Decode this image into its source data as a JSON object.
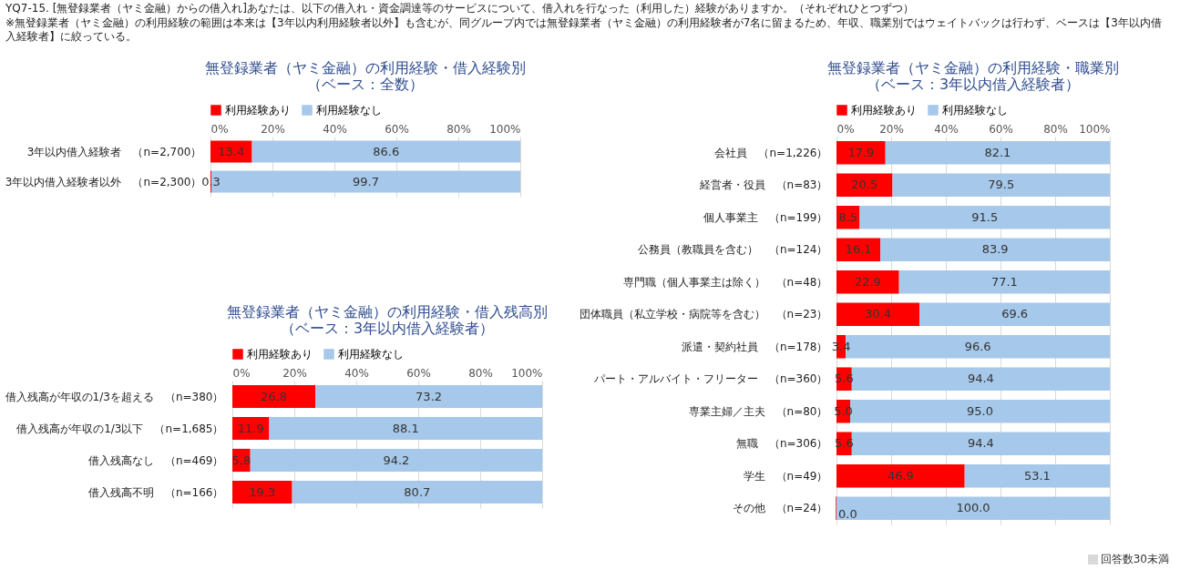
{
  "chart_data": [
    {
      "type": "bar",
      "orientation": "horizontal",
      "stacked": true,
      "title": "無登録業者（ヤミ金融）の利用経験・借入経験別",
      "subtitle": "（ベース：全数）",
      "annotations": [
        "YQ7-15. [無登録業者（ヤミ金融）からの借入れ]あなたは、以下の借入れ・資金調達等のサービスについて、借入れを行なった（利用した）経験がありますか。（それぞれひとつずつ）",
        "※無登録業者（ヤミ金融）の利用経験の範囲は本来は【3年以内利用経験者以外】も含むが、同グループ内では無登録業者（ヤミ金融）の利用経験者が7名に留まるため、年収、職業別ではウェイトバックは行わず、ベースは【3年以内借入経験者】に絞っている。"
      ],
      "categories": [
        "3年以内借入経験者　（n=2,700）",
        "3年以内借入経験者以外　（n=2,300）"
      ],
      "series": [
        {
          "name": "利用経験あり",
          "color": "#ff0000",
          "values": [
            13.4,
            0.3
          ],
          "value_labels": [
            "13.4",
            "0.3"
          ]
        },
        {
          "name": "利用経験なし",
          "color": "#a6c8ea",
          "values": [
            86.6,
            99.7
          ],
          "value_labels": [
            "86.6",
            "99.7"
          ]
        }
      ],
      "xlim": [
        0,
        100
      ],
      "xticks": [
        {
          "value": 0,
          "label": "0%"
        },
        {
          "value": 20,
          "label": "20%"
        },
        {
          "value": 40,
          "label": "40%"
        },
        {
          "value": 60,
          "label": "60%"
        },
        {
          "value": 80,
          "label": "80%"
        },
        {
          "value": 100,
          "label": "100%"
        }
      ],
      "grid": "x",
      "legend": "top"
    },
    {
      "type": "bar",
      "orientation": "horizontal",
      "stacked": true,
      "title": "無登録業者（ヤミ金融）の利用経験・借入残高別",
      "subtitle": "（ベース：3年以内借入経験者）",
      "categories": [
        "借入残高が年収の1/3を超える　（n=380）",
        "借入残高が年収の1/3以下　（n=1,685）",
        "借入残高なし　（n=469）",
        "借入残高不明　（n=166）"
      ],
      "series": [
        {
          "name": "利用経験あり",
          "color": "#ff0000",
          "values": [
            26.8,
            11.9,
            5.8,
            19.3
          ],
          "value_labels": [
            "26.8",
            "11.9",
            "5.8",
            "19.3"
          ]
        },
        {
          "name": "利用経験なし",
          "color": "#a6c8ea",
          "values": [
            73.2,
            88.1,
            94.2,
            80.7
          ],
          "value_labels": [
            "73.2",
            "88.1",
            "94.2",
            "80.7"
          ]
        }
      ],
      "xlim": [
        0,
        100
      ],
      "xticks": [
        {
          "value": 0,
          "label": "0%"
        },
        {
          "value": 20,
          "label": "20%"
        },
        {
          "value": 40,
          "label": "40%"
        },
        {
          "value": 60,
          "label": "60%"
        },
        {
          "value": 80,
          "label": "80%"
        },
        {
          "value": 100,
          "label": "100%"
        }
      ],
      "grid": "x",
      "legend": "top"
    },
    {
      "type": "bar",
      "orientation": "horizontal",
      "stacked": true,
      "title": "無登録業者（ヤミ金融）の利用経験・職業別",
      "subtitle": "（ベース：3年以内借入経験者）",
      "annotations": [
        "回答数30未満"
      ],
      "categories": [
        "会社員　（n=1,226）",
        "経営者・役員　（n=83）",
        "個人事業主　（n=199）",
        "公務員（教職員を含む）　（n=124）",
        "専門職（個人事業主は除く）　（n=48）",
        "団体職員（私立学校・病院等を含む）　（n=23）",
        "派遣・契約社員　（n=178）",
        "パート・アルバイト・フリーター　（n=360）",
        "専業主婦／主夫　（n=80）",
        "無職　（n=306）",
        "学生　（n=49）",
        "その他　（n=24）"
      ],
      "series": [
        {
          "name": "利用経験あり",
          "color": "#ff0000",
          "values": [
            17.9,
            20.5,
            8.5,
            16.1,
            22.9,
            30.4,
            3.4,
            5.6,
            5.0,
            5.6,
            46.9,
            0.0
          ],
          "value_labels": [
            "17.9",
            "20.5",
            "8.5",
            "16.1",
            "22.9",
            "30.4",
            "3.4",
            "5.6",
            "5.0",
            "5.6",
            "46.9",
            "0.0"
          ]
        },
        {
          "name": "利用経験なし",
          "color": "#a6c8ea",
          "values": [
            82.1,
            79.5,
            91.5,
            83.9,
            77.1,
            69.6,
            96.6,
            94.4,
            95.0,
            94.4,
            53.1,
            100.0
          ],
          "value_labels": [
            "82.1",
            "79.5",
            "91.5",
            "83.9",
            "77.1",
            "69.6",
            "96.6",
            "94.4",
            "95.0",
            "94.4",
            "53.1",
            "100.0"
          ]
        }
      ],
      "xlim": [
        0,
        100
      ],
      "xticks": [
        {
          "value": 0,
          "label": "0%"
        },
        {
          "value": 20,
          "label": "20%"
        },
        {
          "value": 40,
          "label": "40%"
        },
        {
          "value": 60,
          "label": "60%"
        },
        {
          "value": 80,
          "label": "80%"
        },
        {
          "value": 100,
          "label": "100%"
        }
      ],
      "grid": "x",
      "legend": "top"
    }
  ]
}
